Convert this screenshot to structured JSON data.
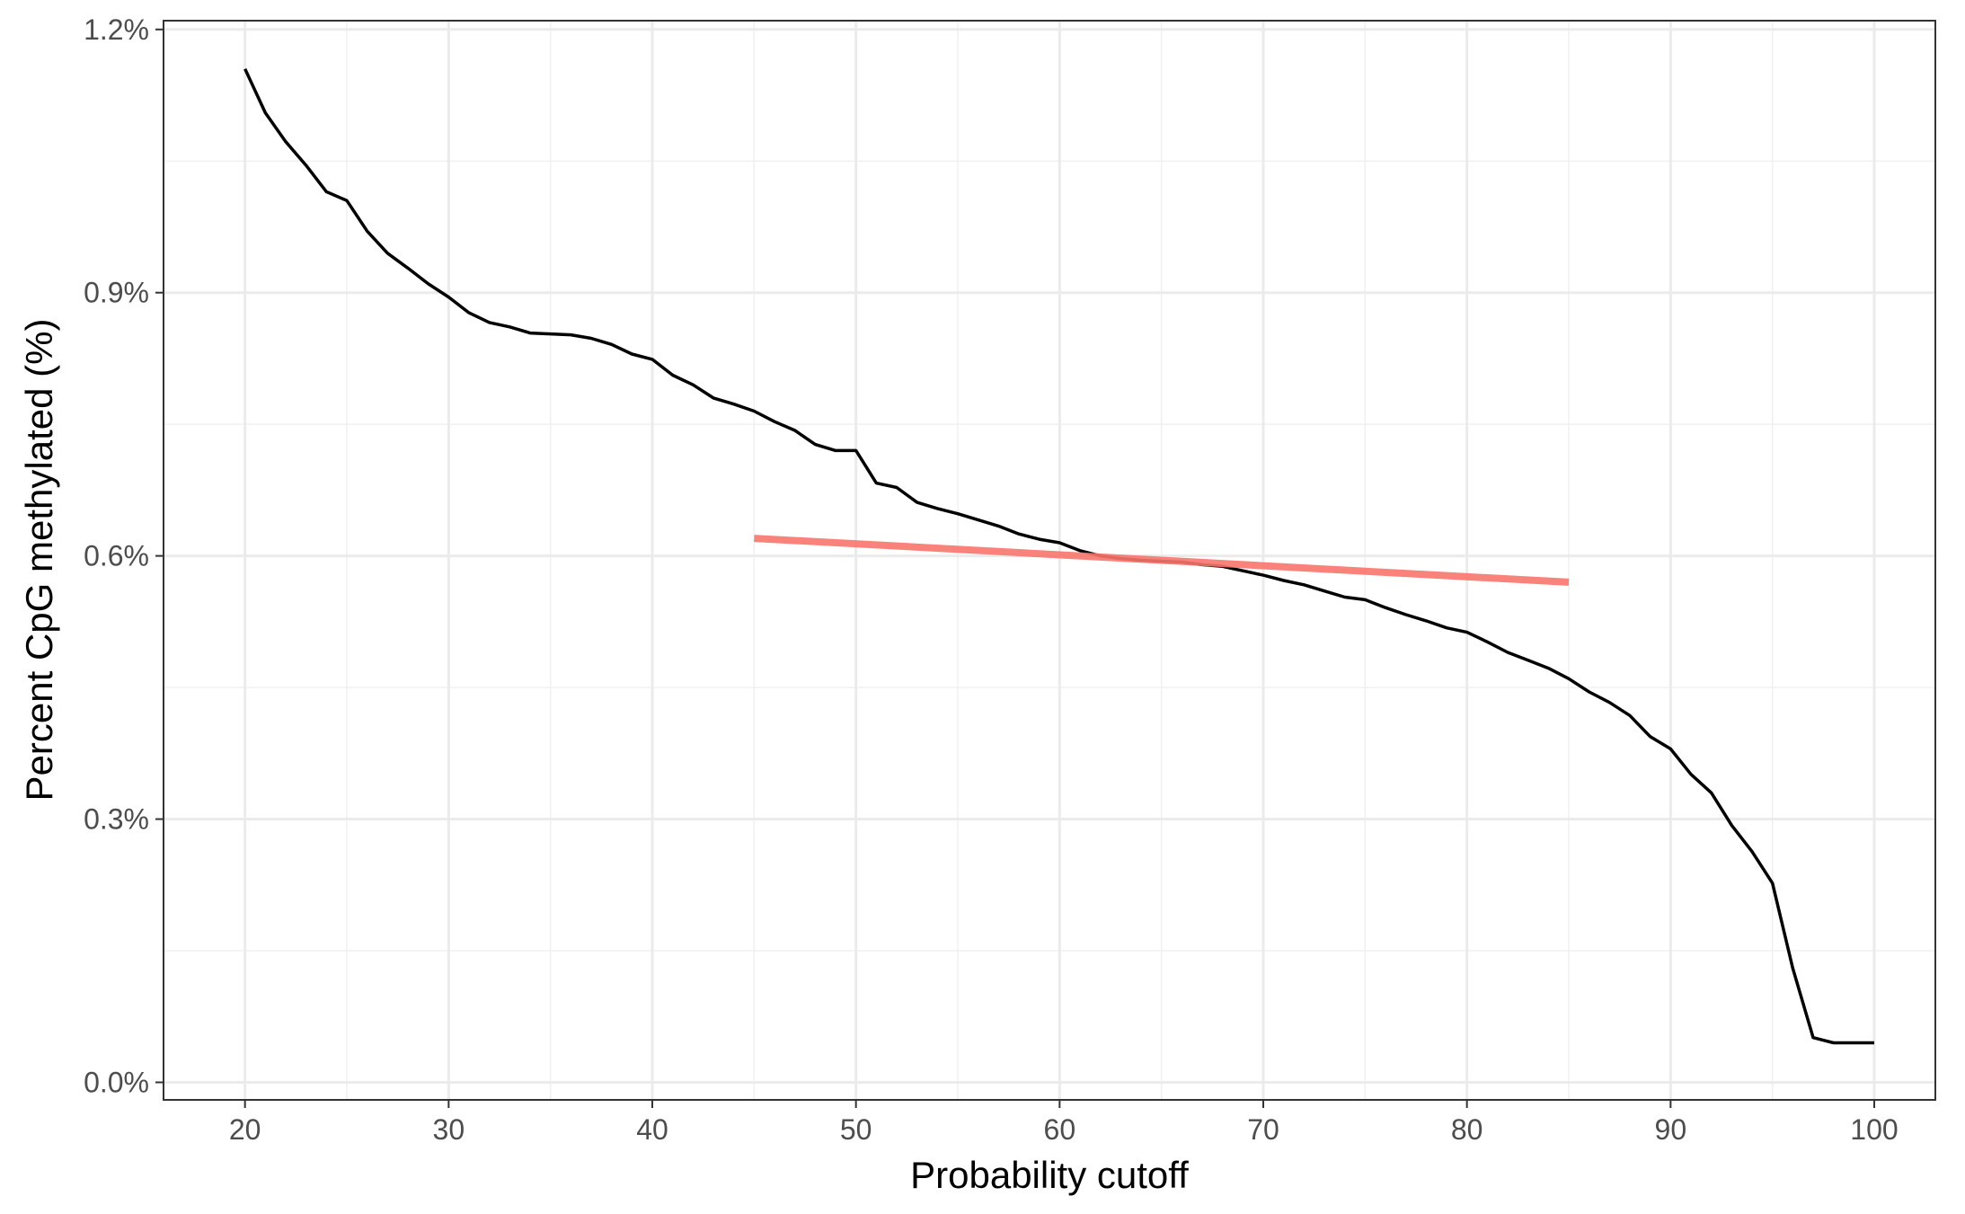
{
  "chart_data": {
    "type": "line",
    "title": "",
    "xlabel": "Probability cutoff",
    "ylabel": "Percent CpG methylated (%)",
    "xlim": [
      16,
      103
    ],
    "ylim": [
      -0.0002,
      0.0121
    ],
    "x_ticks": [
      20,
      30,
      40,
      50,
      60,
      70,
      80,
      90,
      100
    ],
    "x_tick_labels": [
      "20",
      "30",
      "40",
      "50",
      "60",
      "70",
      "80",
      "90",
      "100"
    ],
    "y_ticks": [
      0,
      0.003,
      0.006,
      0.009,
      0.012
    ],
    "y_tick_labels": [
      "0.0%",
      "0.3%",
      "0.6%",
      "0.9%",
      "1.2%"
    ],
    "grid": true,
    "legend": "none",
    "series": [
      {
        "color": "#000000",
        "x": [
          20,
          21,
          22,
          23,
          24,
          25,
          26,
          27,
          28,
          29,
          30,
          31,
          32,
          33,
          34,
          35,
          36,
          37,
          38,
          39,
          40,
          41,
          42,
          43,
          44,
          45,
          46,
          47,
          48,
          49,
          50,
          51,
          52,
          53,
          54,
          55,
          56,
          57,
          58,
          59,
          60,
          61,
          62,
          63,
          64,
          65,
          66,
          67,
          68,
          69,
          70,
          71,
          72,
          73,
          74,
          75,
          76,
          77,
          78,
          79,
          80,
          81,
          82,
          83,
          84,
          85,
          86,
          87,
          88,
          89,
          90,
          91,
          92,
          93,
          94,
          95,
          96,
          97,
          98,
          99,
          100
        ],
        "y": [
          0.01155,
          0.01105,
          0.01072,
          0.01045,
          0.01015,
          0.01005,
          0.0097,
          0.00945,
          0.00928,
          0.0091,
          0.00895,
          0.00877,
          0.00866,
          0.00861,
          0.00854,
          0.00853,
          0.00852,
          0.00848,
          0.00841,
          0.0083,
          0.00824,
          0.00806,
          0.00795,
          0.0078,
          0.00773,
          0.00765,
          0.00753,
          0.00743,
          0.00727,
          0.0072,
          0.0072,
          0.00683,
          0.00678,
          0.00661,
          0.00654,
          0.00648,
          0.00641,
          0.00634,
          0.00625,
          0.00619,
          0.00615,
          0.00606,
          0.006,
          0.00597,
          0.00595,
          0.00594,
          0.00593,
          0.0059,
          0.00588,
          0.00583,
          0.00578,
          0.00572,
          0.00567,
          0.0056,
          0.00553,
          0.0055,
          0.00541,
          0.00533,
          0.00526,
          0.00518,
          0.00513,
          0.00502,
          0.0049,
          0.00481,
          0.00472,
          0.0046,
          0.00445,
          0.00433,
          0.00418,
          0.00394,
          0.0038,
          0.00351,
          0.0033,
          0.00293,
          0.00263,
          0.00227,
          0.0013,
          0.00051,
          0.00045,
          0.00045,
          0.00045
        ]
      },
      {
        "color": "#f8766d",
        "x": [
          45,
          85
        ],
        "y": [
          0.0062,
          0.0057
        ]
      }
    ]
  }
}
